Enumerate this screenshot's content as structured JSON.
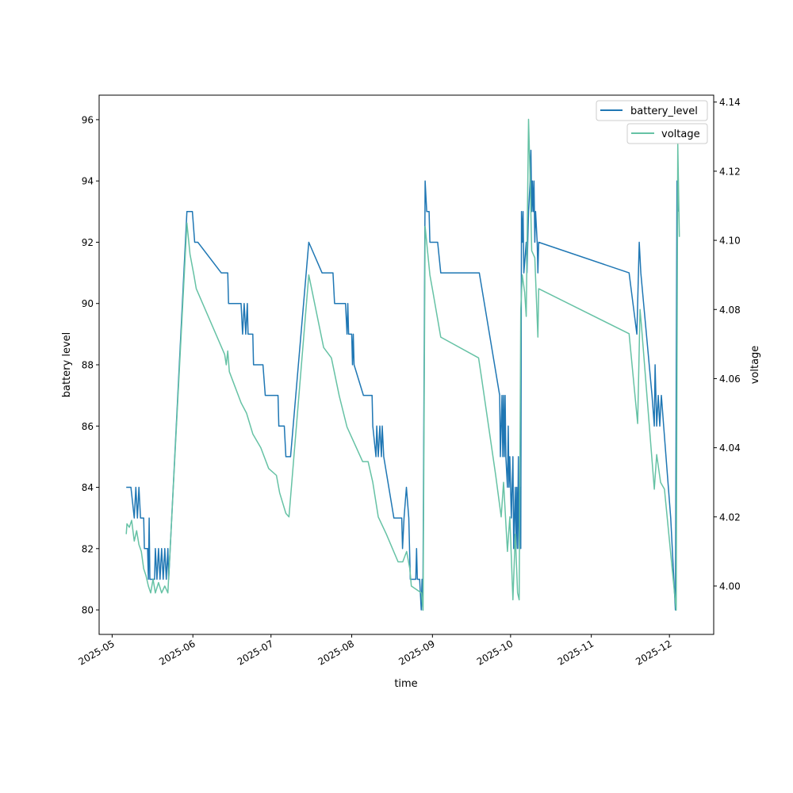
{
  "chart_data": {
    "type": "line",
    "title": "",
    "xlabel": "time",
    "ylabel": "battery level",
    "ylabel_right": "voltage",
    "x_unit": "days since 2025-05-01",
    "x_epoch": "2025-05-01",
    "xlim_days": [
      -5,
      231
    ],
    "x_ticks": [
      {
        "label": "2025-05",
        "day": 0
      },
      {
        "label": "2025-06",
        "day": 31
      },
      {
        "label": "2025-07",
        "day": 61
      },
      {
        "label": "2025-08",
        "day": 92
      },
      {
        "label": "2025-09",
        "day": 123
      },
      {
        "label": "2025-10",
        "day": 153
      },
      {
        "label": "2025-11",
        "day": 184
      },
      {
        "label": "2025-12",
        "day": 214
      }
    ],
    "ylim": [
      79.2,
      96.8
    ],
    "y_ticks": [
      "80",
      "82",
      "84",
      "86",
      "88",
      "90",
      "92",
      "94",
      "96"
    ],
    "ylim_right": [
      3.986,
      4.142
    ],
    "y_ticks_right": [
      "4.00",
      "4.02",
      "4.04",
      "4.06",
      "4.08",
      "4.10",
      "4.12",
      "4.14"
    ],
    "legends": [
      {
        "label": "battery_level",
        "color": "#1f77b4"
      },
      {
        "label": "voltage",
        "color": "#66c2a5"
      }
    ],
    "series": [
      {
        "name": "battery_level",
        "axis": "left",
        "color": "#1f77b4",
        "points": [
          [
            5.4,
            84
          ],
          [
            7.2,
            84
          ],
          [
            8.5,
            83
          ],
          [
            9.1,
            84
          ],
          [
            9.7,
            83
          ],
          [
            10.3,
            84
          ],
          [
            10.9,
            83
          ],
          [
            12.1,
            83
          ],
          [
            12.4,
            82
          ],
          [
            13.6,
            82
          ],
          [
            13.9,
            81
          ],
          [
            14.2,
            83
          ],
          [
            14.5,
            81
          ],
          [
            16.3,
            81
          ],
          [
            16.6,
            82
          ],
          [
            17.2,
            81
          ],
          [
            17.8,
            82
          ],
          [
            18.4,
            81
          ],
          [
            19.0,
            82
          ],
          [
            19.6,
            81
          ],
          [
            20.2,
            82
          ],
          [
            20.8,
            81
          ],
          [
            21.4,
            82
          ],
          [
            21.7,
            81
          ],
          [
            28.7,
            93
          ],
          [
            30.8,
            93
          ],
          [
            31.7,
            92
          ],
          [
            32.9,
            92
          ],
          [
            41.9,
            91
          ],
          [
            44.4,
            91
          ],
          [
            44.7,
            90
          ],
          [
            49.5,
            90
          ],
          [
            50.1,
            89
          ],
          [
            50.7,
            90
          ],
          [
            51.3,
            89
          ],
          [
            51.9,
            90
          ],
          [
            52.2,
            89
          ],
          [
            54.0,
            89
          ],
          [
            54.3,
            88
          ],
          [
            57.9,
            88
          ],
          [
            58.8,
            87
          ],
          [
            63.7,
            87
          ],
          [
            64.0,
            86
          ],
          [
            66.1,
            86
          ],
          [
            66.7,
            85
          ],
          [
            68.5,
            85
          ],
          [
            75.5,
            92
          ],
          [
            80.6,
            91
          ],
          [
            84.8,
            91
          ],
          [
            85.4,
            90
          ],
          [
            89.6,
            90
          ],
          [
            90.2,
            89
          ],
          [
            90.5,
            90
          ],
          [
            90.8,
            89
          ],
          [
            92.0,
            89
          ],
          [
            92.3,
            88
          ],
          [
            92.6,
            89
          ],
          [
            92.9,
            88
          ],
          [
            96.5,
            87
          ],
          [
            99.8,
            87
          ],
          [
            100.1,
            86
          ],
          [
            101.3,
            85
          ],
          [
            101.6,
            86
          ],
          [
            102.2,
            85
          ],
          [
            102.8,
            86
          ],
          [
            103.4,
            85
          ],
          [
            103.7,
            86
          ],
          [
            104.3,
            85
          ],
          [
            108.2,
            83
          ],
          [
            111.2,
            83
          ],
          [
            111.5,
            82
          ],
          [
            112.1,
            83
          ],
          [
            113.0,
            84
          ],
          [
            113.9,
            83
          ],
          [
            114.5,
            81
          ],
          [
            116.6,
            81
          ],
          [
            116.9,
            82
          ],
          [
            117.2,
            81
          ],
          [
            118.1,
            81
          ],
          [
            118.7,
            80
          ],
          [
            119.0,
            81
          ],
          [
            119.3,
            80
          ],
          [
            120.2,
            94
          ],
          [
            120.8,
            93
          ],
          [
            121.7,
            93
          ],
          [
            122.0,
            92
          ],
          [
            125.0,
            92
          ],
          [
            126.2,
            91
          ],
          [
            141.0,
            91
          ],
          [
            148.8,
            87
          ],
          [
            149.1,
            85
          ],
          [
            149.7,
            87
          ],
          [
            150.0,
            85
          ],
          [
            150.3,
            87
          ],
          [
            150.6,
            85
          ],
          [
            150.9,
            87
          ],
          [
            151.2,
            85
          ],
          [
            151.8,
            84
          ],
          [
            152.1,
            86
          ],
          [
            152.4,
            84
          ],
          [
            152.7,
            85
          ],
          [
            153.3,
            83
          ],
          [
            153.9,
            85
          ],
          [
            154.2,
            82
          ],
          [
            154.8,
            84
          ],
          [
            155.1,
            82
          ],
          [
            155.4,
            84
          ],
          [
            155.7,
            82
          ],
          [
            156.0,
            85
          ],
          [
            156.3,
            82
          ],
          [
            156.6,
            84
          ],
          [
            156.9,
            82
          ],
          [
            157.2,
            93
          ],
          [
            157.5,
            92
          ],
          [
            157.8,
            93
          ],
          [
            158.1,
            91
          ],
          [
            159.0,
            92
          ],
          [
            159.3,
            91
          ],
          [
            159.9,
            93
          ],
          [
            160.5,
            94
          ],
          [
            160.8,
            95
          ],
          [
            161.1,
            93
          ],
          [
            161.4,
            94
          ],
          [
            161.7,
            93
          ],
          [
            162.0,
            94
          ],
          [
            162.3,
            92
          ],
          [
            162.6,
            93
          ],
          [
            163.2,
            92
          ],
          [
            163.5,
            91
          ],
          [
            163.8,
            92
          ],
          [
            198.5,
            91
          ],
          [
            201.5,
            89
          ],
          [
            202.4,
            92
          ],
          [
            203.0,
            91
          ],
          [
            207.3,
            87
          ],
          [
            208.2,
            86
          ],
          [
            208.5,
            88
          ],
          [
            209.1,
            86
          ],
          [
            209.7,
            87
          ],
          [
            210.3,
            86
          ],
          [
            210.9,
            87
          ],
          [
            211.8,
            86
          ],
          [
            214.5,
            83
          ],
          [
            216.3,
            80
          ],
          [
            216.9,
            94
          ],
          [
            217.5,
            93
          ]
        ]
      },
      {
        "name": "voltage",
        "axis": "right",
        "color": "#66c2a5",
        "points": [
          [
            5.4,
            4.015
          ],
          [
            5.7,
            4.018
          ],
          [
            6.6,
            4.017
          ],
          [
            7.5,
            4.019
          ],
          [
            8.5,
            4.013
          ],
          [
            9.4,
            4.016
          ],
          [
            10.3,
            4.012
          ],
          [
            11.2,
            4.01
          ],
          [
            12.1,
            4.005
          ],
          [
            13.0,
            4.003
          ],
          [
            13.9,
            4.0
          ],
          [
            14.8,
            3.998
          ],
          [
            15.7,
            4.002
          ],
          [
            16.6,
            3.998
          ],
          [
            17.8,
            4.001
          ],
          [
            19.0,
            3.998
          ],
          [
            20.2,
            4.0
          ],
          [
            21.4,
            3.998
          ],
          [
            28.7,
            4.105
          ],
          [
            29.9,
            4.096
          ],
          [
            31.4,
            4.09
          ],
          [
            32.3,
            4.086
          ],
          [
            43.2,
            4.067
          ],
          [
            43.8,
            4.064
          ],
          [
            44.4,
            4.068
          ],
          [
            45.0,
            4.062
          ],
          [
            49.5,
            4.053
          ],
          [
            51.6,
            4.05
          ],
          [
            54.0,
            4.044
          ],
          [
            57.1,
            4.04
          ],
          [
            60.1,
            4.034
          ],
          [
            63.1,
            4.032
          ],
          [
            64.3,
            4.027
          ],
          [
            66.7,
            4.021
          ],
          [
            67.9,
            4.02
          ],
          [
            75.5,
            4.09
          ],
          [
            81.2,
            4.069
          ],
          [
            84.2,
            4.066
          ],
          [
            87.2,
            4.055
          ],
          [
            90.2,
            4.046
          ],
          [
            92.6,
            4.042
          ],
          [
            96.2,
            4.036
          ],
          [
            98.3,
            4.036
          ],
          [
            100.1,
            4.03
          ],
          [
            102.2,
            4.02
          ],
          [
            105.3,
            4.015
          ],
          [
            109.8,
            4.007
          ],
          [
            111.6,
            4.007
          ],
          [
            113.1,
            4.01
          ],
          [
            114.3,
            4.005
          ],
          [
            114.9,
            4.0
          ],
          [
            118.8,
            3.998
          ],
          [
            119.4,
            3.993
          ],
          [
            120.2,
            4.104
          ],
          [
            122.0,
            4.09
          ],
          [
            123.2,
            4.085
          ],
          [
            126.2,
            4.072
          ],
          [
            140.7,
            4.066
          ],
          [
            141.9,
            4.06
          ],
          [
            147.3,
            4.032
          ],
          [
            149.4,
            4.02
          ],
          [
            150.3,
            4.03
          ],
          [
            151.8,
            4.01
          ],
          [
            152.7,
            4.02
          ],
          [
            153.9,
            3.996
          ],
          [
            154.8,
            4.015
          ],
          [
            155.7,
            3.998
          ],
          [
            156.3,
            3.996
          ],
          [
            156.9,
            4.08
          ],
          [
            157.5,
            4.09
          ],
          [
            158.4,
            4.085
          ],
          [
            159.0,
            4.078
          ],
          [
            159.9,
            4.135
          ],
          [
            160.5,
            4.118
          ],
          [
            161.1,
            4.097
          ],
          [
            162.3,
            4.095
          ],
          [
            163.5,
            4.072
          ],
          [
            163.8,
            4.086
          ],
          [
            198.5,
            4.073
          ],
          [
            201.8,
            4.047
          ],
          [
            202.7,
            4.08
          ],
          [
            203.3,
            4.075
          ],
          [
            208.2,
            4.028
          ],
          [
            209.1,
            4.038
          ],
          [
            210.6,
            4.03
          ],
          [
            212.1,
            4.028
          ],
          [
            214.8,
            4.007
          ],
          [
            216.6,
            3.993
          ],
          [
            217.2,
            4.128
          ],
          [
            217.8,
            4.101
          ]
        ]
      }
    ]
  }
}
